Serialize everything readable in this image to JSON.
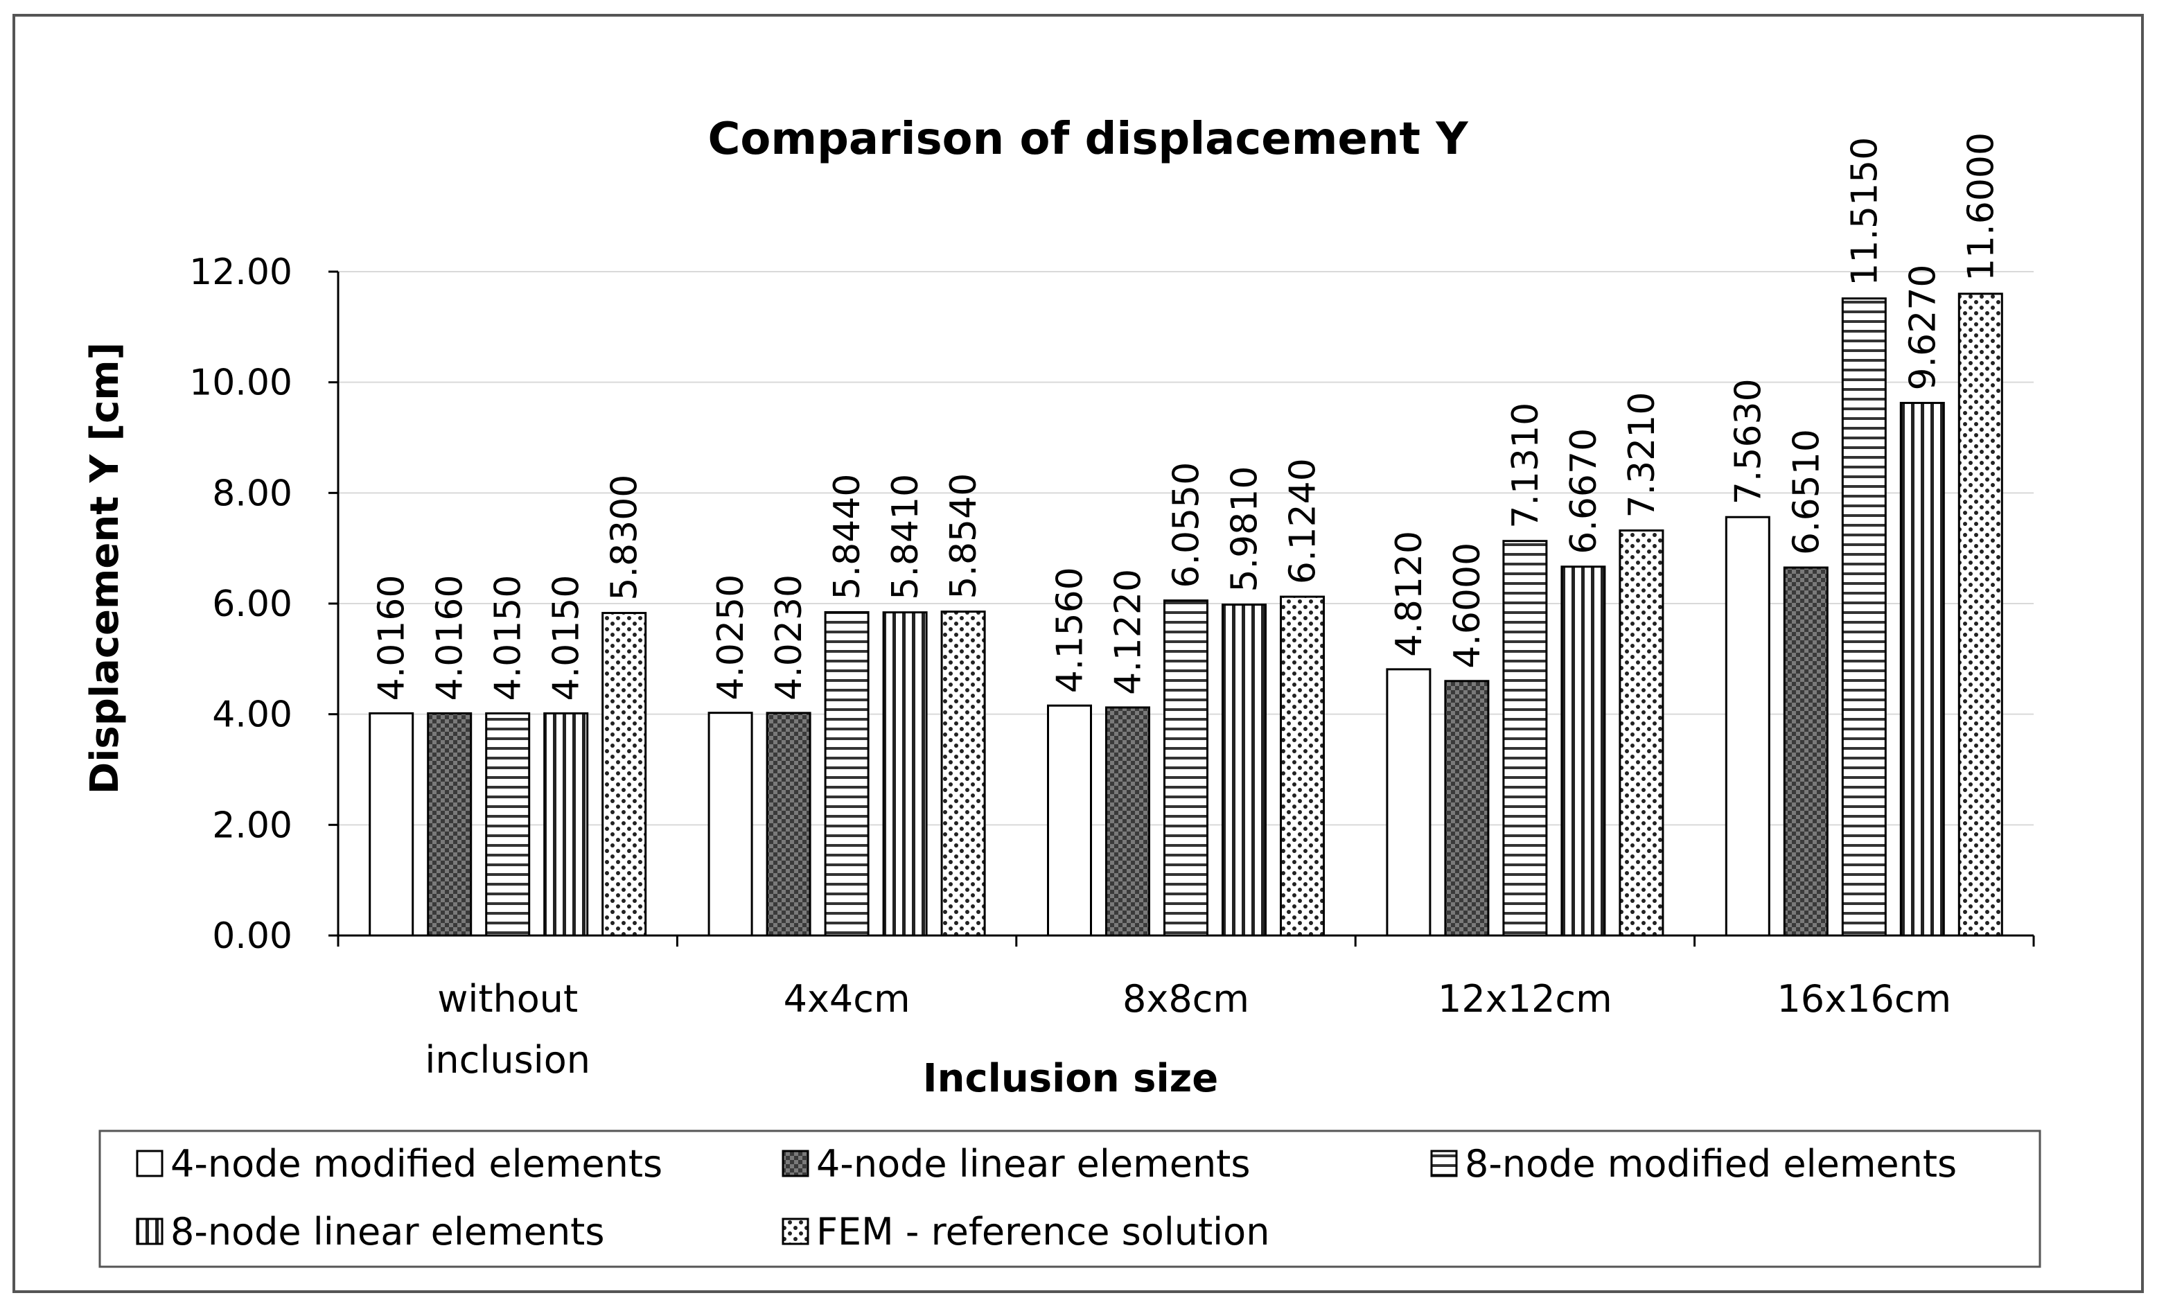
{
  "chart_data": {
    "type": "bar",
    "title": "Comparison of displacement Y",
    "xlabel": "Inclusion size",
    "ylabel": "Displacement Y  [cm]",
    "ylim": [
      0,
      12
    ],
    "yticks": [
      "0.00",
      "2.00",
      "4.00",
      "6.00",
      "8.00",
      "10.00",
      "12.00"
    ],
    "categories": [
      "without inclusion",
      "4x4cm",
      "8x8cm",
      "12x12cm",
      "16x16cm"
    ],
    "grid": true,
    "legend_position": "bottom",
    "series": [
      {
        "name": "4-node modified elements",
        "pattern": "white",
        "values": [
          4.016,
          4.025,
          4.156,
          4.812,
          7.563
        ],
        "labels": [
          "4.0160",
          "4.0250",
          "4.1560",
          "4.8120",
          "7.5630"
        ]
      },
      {
        "name": "4-node linear elements",
        "pattern": "dark-checker",
        "values": [
          4.016,
          4.023,
          4.122,
          4.6,
          6.651
        ],
        "labels": [
          "4.0160",
          "4.0230",
          "4.1220",
          "4.6000",
          "6.6510"
        ]
      },
      {
        "name": "8-node modified elements",
        "pattern": "horizontal-lines",
        "values": [
          4.015,
          5.844,
          6.055,
          7.131,
          11.515
        ],
        "labels": [
          "4.0150",
          "5.8440",
          "6.0550",
          "7.1310",
          "11.5150"
        ]
      },
      {
        "name": "8-node linear elements",
        "pattern": "vertical-lines",
        "values": [
          4.015,
          5.841,
          5.981,
          6.667,
          9.627
        ],
        "labels": [
          "4.0150",
          "5.8410",
          "5.9810",
          "6.6670",
          "9.6270"
        ]
      },
      {
        "name": "FEM - reference solution",
        "pattern": "dots",
        "values": [
          5.83,
          5.854,
          6.124,
          7.321,
          11.6
        ],
        "labels": [
          "5.8300",
          "5.8540",
          "6.1240",
          "7.3210",
          "11.6000"
        ]
      }
    ]
  }
}
